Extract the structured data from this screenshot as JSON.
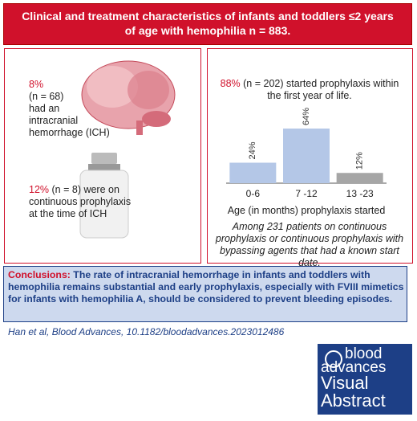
{
  "header": {
    "title": "Clinical and treatment characteristics of infants and toddlers ≤2 years of age with hemophilia n = 883."
  },
  "left": {
    "ich_percent": "8%",
    "ich_lines": [
      "(n = 68)",
      "had an",
      "intracranial",
      "hemorrhage (ICH)"
    ],
    "prophylaxis_percent": "12%",
    "prophylaxis_first": " (n = 8) were on",
    "prophylaxis_lines": [
      "continuous prophylaxis",
      "at the time of ICH"
    ]
  },
  "right": {
    "intro_percent": "88%",
    "intro_rest": " (n = 202) started prophylaxis within the first year of life.",
    "note": "Among 231 patients on continuous prophylaxis or continuous prophylaxis with bypassing agents that had a known start date."
  },
  "chart_data": {
    "type": "bar",
    "x_label": "Age (in months) prophylaxis started",
    "categories": [
      "0-6",
      "7 -12",
      "13 -23"
    ],
    "values": [
      24,
      64,
      12
    ],
    "value_labels": [
      "24%",
      "64%",
      "12%"
    ],
    "colors": [
      "#b4c7e7",
      "#b4c7e7",
      "#a6a6a6"
    ]
  },
  "conclusions": {
    "label": "Conclusions:",
    "text": " The rate of intracranial hemorrhage in infants and toddlers with hemophilia remains substantial and early prophylaxis, especially with FVIII mimetics for infants with hemophilia A, should be considered to prevent bleeding episodes."
  },
  "citation": "Han et al, Blood Advances, 10.1182/bloodadvances.2023012486",
  "logo": {
    "line1": "blood",
    "line2": "advances",
    "line3": "Visual",
    "line4": "Abstract"
  }
}
